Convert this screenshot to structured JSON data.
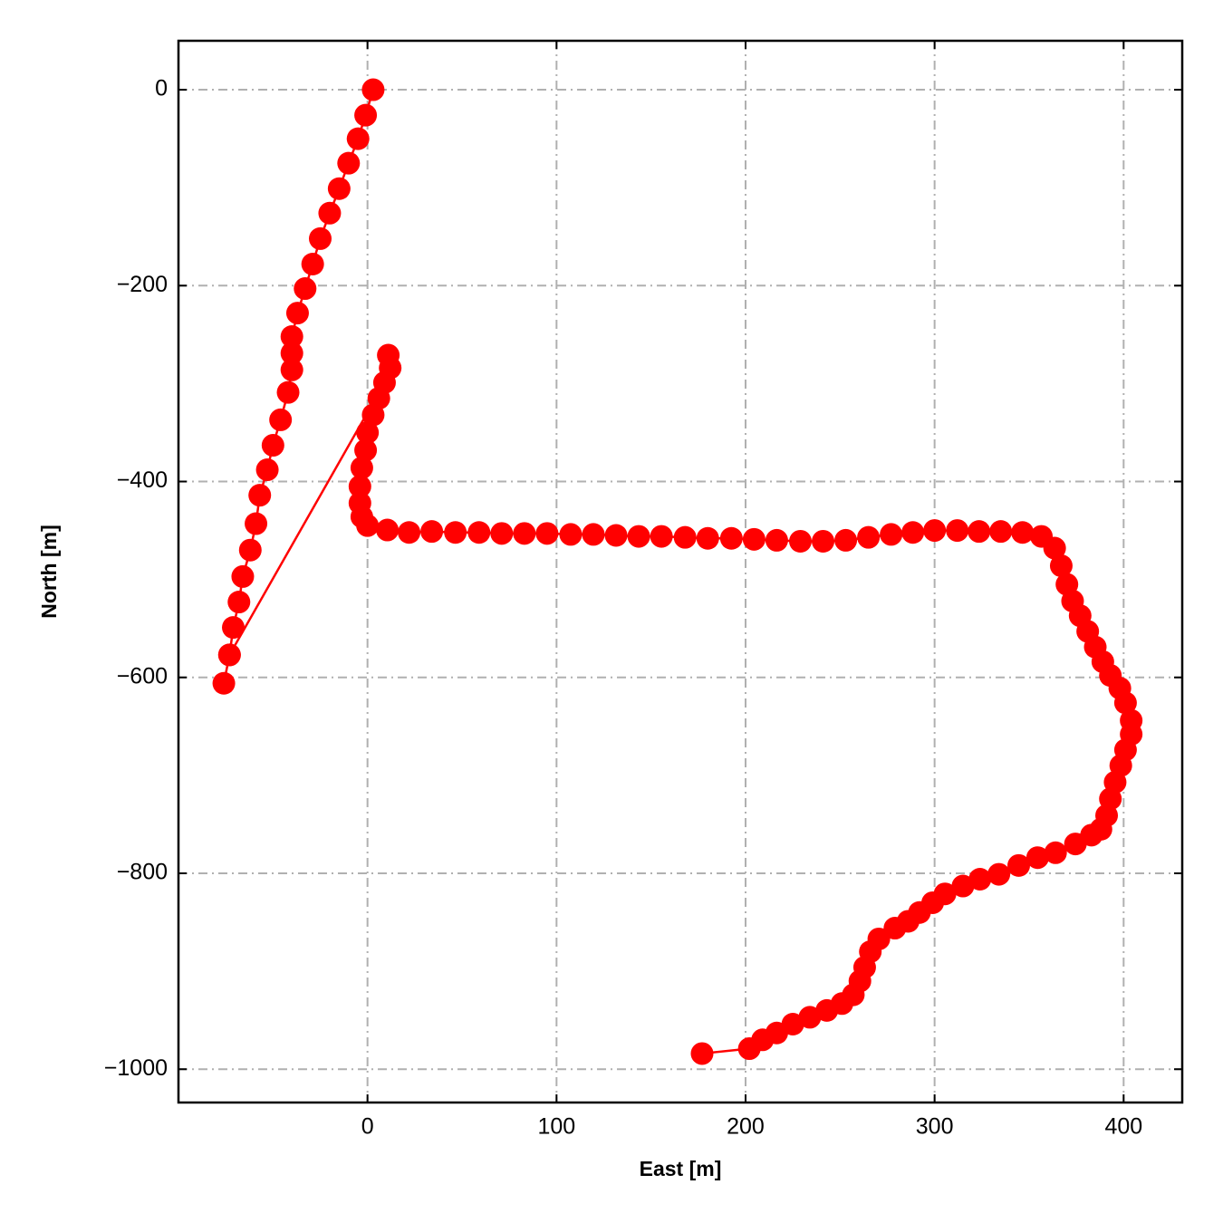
{
  "chart_data": {
    "type": "line",
    "xlabel": "East [m]",
    "ylabel": "North [m]",
    "xlim": [
      -100,
      431
    ],
    "ylim": [
      -1034,
      50
    ],
    "xticks": [
      0,
      100,
      200,
      300,
      400
    ],
    "yticks": [
      0,
      {
        "value": -200,
        "label": "−200"
      },
      {
        "value": -400,
        "label": "−400"
      },
      {
        "value": -600,
        "label": "−600"
      },
      {
        "value": -800,
        "label": "−800"
      },
      {
        "value": -1000,
        "label": "−1000"
      }
    ],
    "grid": true,
    "series": [
      {
        "color": "#ff0000",
        "x": [
          3,
          -1,
          -5,
          -10,
          -15,
          -20,
          -25,
          -29,
          -33,
          -37,
          -40,
          -40,
          -40,
          -42,
          -46,
          -50,
          -53,
          -57,
          -59,
          -62,
          -66,
          -68,
          -71,
          -73,
          -76,
          -73,
          9,
          11,
          12,
          6,
          3,
          0,
          -1,
          -3,
          -4,
          -4,
          -3,
          0,
          10.5,
          22,
          34,
          46.5,
          59,
          71,
          83,
          95,
          107.5,
          119.5,
          131.5,
          143.5,
          155.5,
          168,
          180,
          192.5,
          204.5,
          216.5,
          229,
          241,
          253,
          265,
          277,
          288.5,
          300,
          312,
          323.5,
          335,
          346.5,
          356.5,
          363.5,
          367,
          370,
          373,
          377,
          381,
          385,
          389,
          393,
          398,
          401,
          404,
          404,
          401,
          398.5,
          395.5,
          393,
          391,
          388,
          383,
          374.5,
          364,
          354.5,
          344.5,
          334,
          324,
          315,
          305.5,
          299,
          292,
          286,
          279,
          270.5,
          266,
          263,
          260.5,
          257,
          251,
          243,
          234,
          225,
          216.5,
          209,
          202,
          177
        ],
        "values": [
          0,
          -26,
          -50,
          -75,
          -101,
          -126,
          -152,
          -178,
          -203,
          -228,
          -252,
          -269,
          -286,
          -309,
          -337,
          -363,
          -388,
          -414,
          -443,
          -470,
          -497,
          -523,
          -549,
          -577,
          -606,
          -577,
          -299,
          -271,
          -284,
          -315,
          -332,
          -350,
          -368,
          -386,
          -405,
          -422,
          -436,
          -445,
          -449.5,
          -452,
          -451,
          -452,
          -452,
          -453,
          -453,
          -453,
          -454,
          -454,
          -455,
          -456,
          -456,
          -457,
          -458,
          -458,
          -459,
          -460,
          -461,
          -461,
          -460,
          -457,
          -454,
          -452,
          -450,
          -450,
          -451,
          -451,
          -452,
          -456,
          -468,
          -486,
          -505,
          -522,
          -537,
          -553,
          -569,
          -584,
          -598,
          -611,
          -626,
          -644,
          -658,
          -674,
          -690,
          -707,
          -724,
          -741,
          -755,
          -761,
          -770,
          -779,
          -784,
          -792,
          -801,
          -806,
          -813,
          -821,
          -830,
          -840,
          -849,
          -856,
          -867,
          -880,
          -896,
          -910,
          -924,
          -933,
          -940,
          -947,
          -954,
          -963,
          -970,
          -979,
          -984
        ]
      }
    ]
  }
}
